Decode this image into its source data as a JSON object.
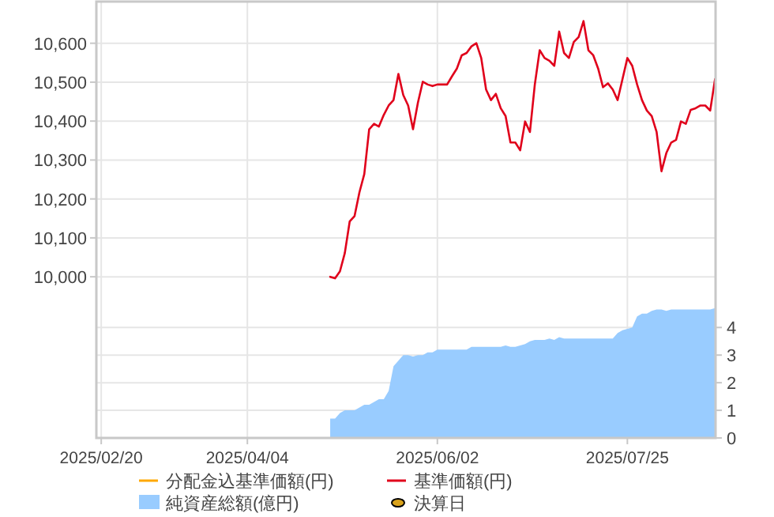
{
  "chart_data": {
    "type": "line",
    "categories": [
      "2025/02/20",
      null,
      null,
      null,
      null,
      null,
      null,
      null,
      null,
      null,
      null,
      null,
      null,
      null,
      null,
      null,
      null,
      null,
      null,
      null,
      null,
      null,
      null,
      null,
      null,
      null,
      null,
      null,
      null,
      null,
      "2025/04/04",
      null,
      null,
      null,
      null,
      null,
      null,
      null,
      null,
      null,
      null,
      null,
      null,
      null,
      null,
      null,
      null,
      null,
      null,
      null,
      null,
      null,
      null,
      null,
      null,
      null,
      null,
      null,
      null,
      null,
      null,
      null,
      null,
      null,
      null,
      null,
      null,
      null,
      null,
      "2025/06/02",
      null,
      null,
      null,
      null,
      null,
      null,
      null,
      null,
      null,
      null,
      null,
      null,
      null,
      null,
      null,
      null,
      null,
      null,
      null,
      null,
      null,
      null,
      null,
      null,
      null,
      null,
      null,
      null,
      null,
      null,
      null,
      null,
      null,
      null,
      null,
      null,
      null,
      null,
      "2025/07/25",
      null,
      null,
      null,
      null,
      null,
      null,
      null,
      null,
      null,
      null,
      null,
      null,
      null,
      null,
      null,
      null,
      null,
      null
    ],
    "ylim": [
      9586,
      10707
    ],
    "yticks": [
      {
        "value": 10000,
        "label": "10,000"
      },
      {
        "value": 10100,
        "label": "10,100"
      },
      {
        "value": 10200,
        "label": "10,200"
      },
      {
        "value": 10300,
        "label": "10,300"
      },
      {
        "value": 10400,
        "label": "10,400"
      },
      {
        "value": 10500,
        "label": "10,500"
      },
      {
        "value": 10600,
        "label": "10,600"
      }
    ],
    "y2lim": [
      0,
      15.8
    ],
    "y2ticks": [
      0,
      1,
      2,
      3,
      4
    ],
    "grid": true,
    "legend": "bottom",
    "series": [
      {
        "name": "分配金込基準価額(円)",
        "type": "line",
        "axis": "y",
        "color": "#ffa800",
        "values": [
          null,
          null,
          null,
          null,
          null,
          null,
          null,
          null,
          null,
          null,
          null,
          null,
          null,
          null,
          null,
          null,
          null,
          null,
          null,
          null,
          null,
          null,
          null,
          null,
          null,
          null,
          null,
          null,
          null,
          null,
          null,
          null,
          null,
          null,
          null,
          null,
          null,
          null,
          null,
          null,
          null,
          null,
          null,
          null,
          null,
          null,
          null,
          null,
          null,
          null,
          null,
          null,
          null,
          null,
          null,
          null,
          null,
          null,
          null,
          null,
          null,
          null,
          null,
          null,
          null,
          null,
          null,
          null,
          null,
          null,
          null,
          null,
          null,
          null,
          null,
          null,
          null,
          null,
          null,
          null,
          null,
          null,
          null,
          null,
          null,
          null,
          null,
          null,
          null,
          null,
          null,
          null,
          null,
          null,
          null,
          null,
          null,
          null,
          null,
          null,
          null,
          null,
          null,
          null,
          null,
          null,
          null,
          null,
          null,
          null,
          null,
          null,
          null,
          null,
          null,
          null,
          null,
          null,
          null,
          null,
          null,
          null,
          null,
          null,
          null,
          null,
          null
        ]
      },
      {
        "name": "基準価額(円)",
        "type": "line",
        "axis": "y",
        "color": "#e0001b",
        "values": [
          null,
          null,
          null,
          null,
          null,
          null,
          null,
          null,
          null,
          null,
          null,
          null,
          null,
          null,
          null,
          null,
          null,
          null,
          null,
          null,
          null,
          null,
          null,
          null,
          null,
          null,
          null,
          null,
          null,
          null,
          null,
          null,
          null,
          null,
          null,
          null,
          null,
          null,
          null,
          null,
          null,
          null,
          null,
          null,
          null,
          null,
          null,
          10000,
          9996,
          10014,
          10061,
          10142,
          10156,
          10217,
          10264,
          10379,
          10393,
          10386,
          10416,
          10440,
          10454,
          10521,
          10467,
          10440,
          10379,
          10447,
          10501,
          10494,
          10490,
          10494,
          10494,
          10494,
          10515,
          10535,
          10569,
          10575,
          10592,
          10600,
          10562,
          10481,
          10454,
          10470,
          10433,
          10413,
          10345,
          10345,
          10325,
          10399,
          10372,
          10494,
          10582,
          10562,
          10555,
          10542,
          10630,
          10575,
          10562,
          10603,
          10616,
          10657,
          10582,
          10569,
          10535,
          10487,
          10497,
          10481,
          10454,
          10508,
          10562,
          10542,
          10494,
          10454,
          10427,
          10413,
          10372,
          10271,
          10318,
          10345,
          10352,
          10399,
          10393,
          10429,
          10433,
          10440,
          10440,
          10427,
          10508
        ]
      },
      {
        "name": "純資産総額(億円)",
        "type": "area",
        "axis": "y2",
        "color": "#99ccff",
        "values": [
          null,
          null,
          null,
          null,
          null,
          null,
          null,
          null,
          null,
          null,
          null,
          null,
          null,
          null,
          null,
          null,
          null,
          null,
          null,
          null,
          null,
          null,
          null,
          null,
          null,
          null,
          null,
          null,
          null,
          null,
          null,
          null,
          null,
          null,
          null,
          null,
          null,
          null,
          null,
          null,
          null,
          null,
          null,
          null,
          null,
          null,
          null,
          0.7,
          0.7,
          0.9,
          1.0,
          1.0,
          1.0,
          1.1,
          1.2,
          1.2,
          1.3,
          1.4,
          1.4,
          1.7,
          2.6,
          2.8,
          3.0,
          3.0,
          2.95,
          3.0,
          3.0,
          3.1,
          3.1,
          3.2,
          3.2,
          3.2,
          3.2,
          3.2,
          3.2,
          3.2,
          3.3,
          3.3,
          3.3,
          3.3,
          3.3,
          3.3,
          3.3,
          3.35,
          3.3,
          3.3,
          3.35,
          3.4,
          3.5,
          3.55,
          3.55,
          3.55,
          3.6,
          3.55,
          3.65,
          3.6,
          3.6,
          3.6,
          3.6,
          3.6,
          3.6,
          3.6,
          3.6,
          3.6,
          3.6,
          3.6,
          3.8,
          3.9,
          3.95,
          4.0,
          4.4,
          4.5,
          4.5,
          4.6,
          4.65,
          4.65,
          4.6,
          4.65,
          4.65,
          4.65,
          4.65,
          4.65,
          4.65,
          4.65,
          4.65,
          4.65,
          4.7
        ]
      },
      {
        "name": "決算日",
        "type": "scatter",
        "axis": "y",
        "color": "#d9a21b",
        "marker": "circle",
        "values": [
          null,
          null,
          null,
          null,
          null,
          null,
          null,
          null,
          null,
          null,
          null,
          null,
          null,
          null,
          null,
          null,
          null,
          null,
          null,
          null,
          null,
          null,
          null,
          null,
          null,
          null,
          null,
          null,
          null,
          null,
          null,
          null,
          null,
          null,
          null,
          null,
          null,
          null,
          null,
          null,
          null,
          null,
          null,
          null,
          null,
          null,
          null,
          null,
          null,
          null,
          null,
          null,
          null,
          null,
          null,
          null,
          null,
          null,
          null,
          null,
          null,
          null,
          null,
          null,
          null,
          null,
          null,
          null,
          null,
          null,
          null,
          null,
          null,
          null,
          null,
          null,
          null,
          null,
          null,
          null,
          null,
          null,
          null,
          null,
          null,
          null,
          null,
          null,
          null,
          null,
          null,
          null,
          null,
          null,
          null,
          null,
          null,
          null,
          null,
          null,
          null,
          null,
          null,
          null,
          null,
          null,
          null,
          null,
          null,
          null,
          null,
          null,
          null,
          null,
          null,
          null,
          null,
          null,
          null,
          null,
          null,
          null,
          null,
          null,
          null,
          null,
          null
        ]
      }
    ]
  }
}
